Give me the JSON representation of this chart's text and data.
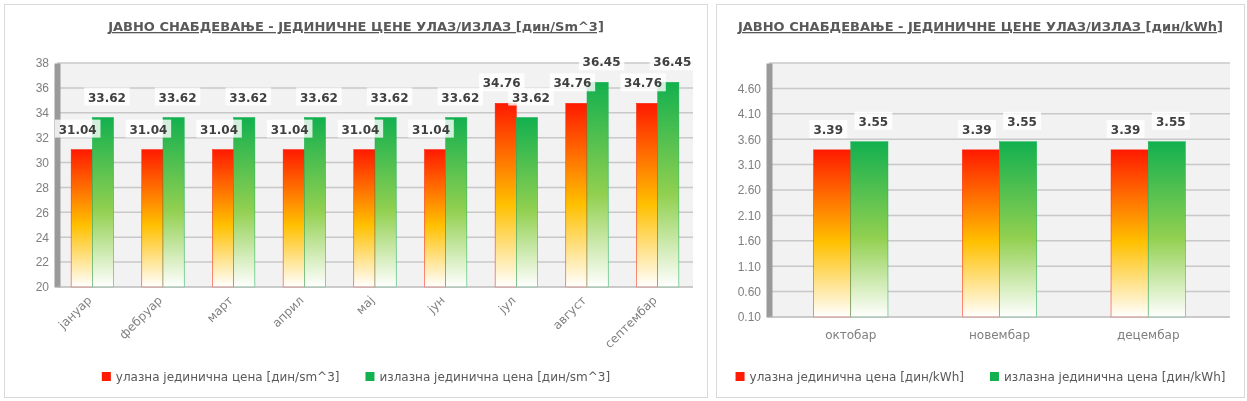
{
  "chart_data": [
    {
      "type": "bar",
      "title": "ЈАВНО СНАБДЕВАЊЕ - ЈЕДИНИЧНЕ ЦЕНЕ УЛАЗ/ИЗЛАЗ [дин/Sm^3]",
      "categories": [
        "јануар",
        "фебруар",
        "март",
        "април",
        "мај",
        "јун",
        "јул",
        "август",
        "септембар"
      ],
      "series": [
        {
          "name": "улазна јединична цена [дин/sm^3]",
          "color": "#ff1a00",
          "values": [
            31.04,
            31.04,
            31.04,
            31.04,
            31.04,
            31.04,
            34.76,
            34.76,
            34.76
          ]
        },
        {
          "name": "излазна јединична цена [дин/sm^3]",
          "color": "#12b04f",
          "values": [
            33.62,
            33.62,
            33.62,
            33.62,
            33.62,
            33.62,
            33.62,
            36.45,
            36.45
          ]
        }
      ],
      "ylim": [
        20,
        38
      ],
      "yticks": [
        20,
        22,
        24,
        26,
        28,
        30,
        32,
        34,
        36,
        38
      ],
      "grid": "y",
      "legend": "bottom",
      "data_labels": true
    },
    {
      "type": "bar",
      "title": "ЈАВНО СНАБДЕВАЊЕ - ЈЕДИНИЧНЕ ЦЕНЕ УЛАЗ/ИЗЛАЗ [дин/kWh]",
      "categories": [
        "октобар",
        "новембар",
        "децембар"
      ],
      "series": [
        {
          "name": "улазна јединична цена  [дин/kWh]",
          "color": "#ff1a00",
          "values": [
            3.39,
            3.39,
            3.39
          ]
        },
        {
          "name": "излазна јединична цена [дин/kWh]",
          "color": "#12b04f",
          "values": [
            3.55,
            3.55,
            3.55
          ]
        }
      ],
      "ylim": [
        0.1,
        5.1
      ],
      "yticks": [
        {
          "value": 0.1,
          "label": "0.10"
        },
        {
          "value": 0.6,
          "label": "0.60"
        },
        {
          "value": 1.1,
          "label": "1.10"
        },
        {
          "value": 1.6,
          "label": "1.60"
        },
        {
          "value": 2.1,
          "label": "2.10"
        },
        {
          "value": 2.6,
          "label": "2.60"
        },
        {
          "value": 3.1,
          "label": "3.10"
        },
        {
          "value": 3.6,
          "label": "3.60"
        },
        {
          "value": 4.1,
          "label": "4.10"
        },
        {
          "value": 4.6,
          "label": "4.60"
        },
        {
          "value": 5.1,
          "label": null
        }
      ],
      "grid": "y",
      "legend": "bottom",
      "data_labels": true
    }
  ]
}
